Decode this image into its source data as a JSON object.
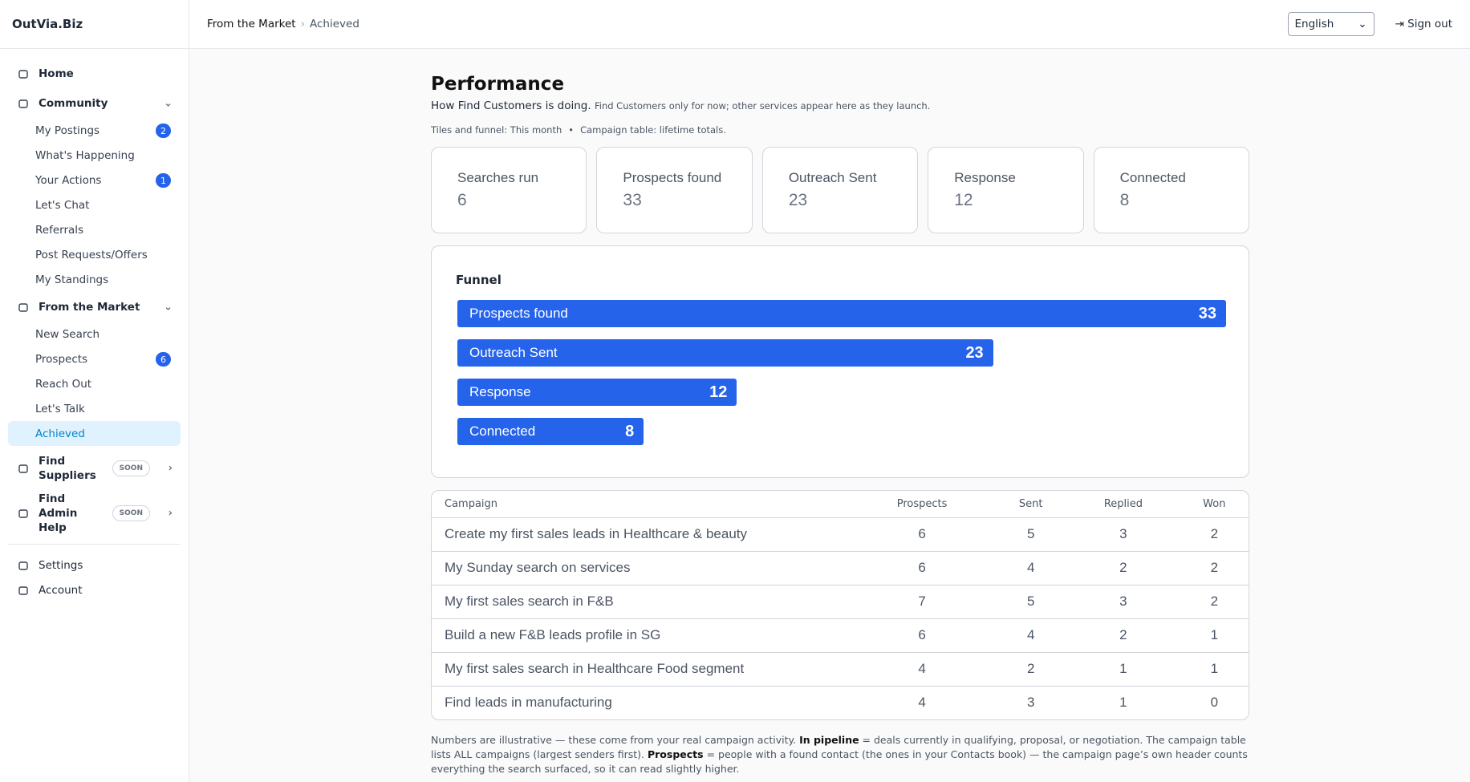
{
  "sidebar": {
    "brand": "OutVia.Biz",
    "nav": [
      {
        "label": "Home"
      },
      {
        "label": "Community",
        "children": [
          {
            "label": "My Postings",
            "badge": "2"
          },
          {
            "label": "What's Happening"
          },
          {
            "label": "Your Actions",
            "badge": "1"
          },
          {
            "label": "Let's Chat"
          },
          {
            "label": "Referrals"
          },
          {
            "label": "Post Requests/Offers"
          },
          {
            "label": "My Standings"
          }
        ]
      },
      {
        "label": "From the Market",
        "children": [
          {
            "label": "New Search"
          },
          {
            "label": "Prospects",
            "badge": "6"
          },
          {
            "label": "Reach Out"
          },
          {
            "label": "Let's Talk"
          },
          {
            "label": "Achieved"
          }
        ]
      },
      {
        "label": "Find Suppliers",
        "tag": "SOON"
      },
      {
        "label": "Find Admin Help",
        "tag": "SOON"
      }
    ],
    "bottom": [
      {
        "label": "Settings"
      },
      {
        "label": "Account"
      }
    ]
  },
  "header": {
    "breadcrumb": [
      "From the Market",
      "Achieved"
    ],
    "language": "English",
    "sign_out": "Sign out"
  },
  "page": {
    "title": "Performance",
    "subtitle": "How Find Customers is doing.",
    "subtitle_note": "Find Customers only for now; other services appear here as they launch.",
    "scope": [
      "Tiles and funnel: This month",
      "Campaign table: lifetime totals."
    ],
    "tiles": [
      {
        "label": "Searches run",
        "value": 6
      },
      {
        "label": "Prospects found",
        "value": 33
      },
      {
        "label": "Outreach Sent",
        "value": 23
      },
      {
        "label": "Response",
        "value": 12
      },
      {
        "label": "Connected",
        "value": 8
      }
    ],
    "funnel": {
      "title": "Funnel",
      "stages": [
        {
          "label": "Prospects found",
          "value": 33
        },
        {
          "label": "Outreach Sent",
          "value": 23
        },
        {
          "label": "Response",
          "value": 12
        },
        {
          "label": "Connected",
          "value": 8
        }
      ]
    },
    "table": {
      "columns": [
        "Campaign",
        "Prospects",
        "Sent",
        "Replied",
        "Won"
      ],
      "rows": [
        [
          "Create my first sales leads in Healthcare & beauty",
          6,
          5,
          3,
          2
        ],
        [
          "My Sunday search on services",
          6,
          4,
          2,
          2
        ],
        [
          "My first sales search in F&B",
          7,
          5,
          3,
          2
        ],
        [
          "Build a new F&B leads profile in SG",
          6,
          4,
          2,
          1
        ],
        [
          "My first sales search in Healthcare Food segment",
          4,
          2,
          1,
          1
        ],
        [
          "Find leads in manufacturing",
          4,
          3,
          1,
          0
        ]
      ]
    },
    "footnote": [
      "Numbers are illustrative — these come from your real campaign activity. ",
      "In pipeline",
      " = deals currently in qualifying, proposal, or negotiation. The campaign table lists ALL campaigns (largest senders first). ",
      "Prospects",
      " = people with a found contact (the ones in your Contacts book) — the campaign page’s own header counts everything the search surfaced, so it can read slightly higher."
    ]
  }
}
